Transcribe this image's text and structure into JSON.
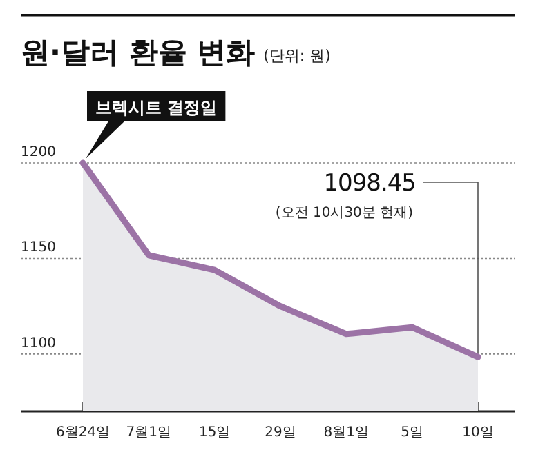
{
  "chart_data": {
    "type": "area",
    "title": "원·달러 환율 변화",
    "subtitle": "(단위: 원)",
    "categories": [
      "6월24일",
      "7월1일",
      "15일",
      "29일",
      "8월1일",
      "5일",
      "10일"
    ],
    "series": [
      {
        "color": "#9c73a6",
        "values": [
          1200,
          1151.7,
          1144,
          1125,
          1110.5,
          1114,
          1098.45
        ],
        "value_labels": [
          null,
          null,
          null,
          null,
          null,
          null,
          "1098.45"
        ]
      }
    ],
    "ylim": [
      1070,
      1200
    ],
    "yticks": [
      1100,
      1150,
      1200
    ],
    "grid": "y",
    "annotations": [
      "브렉시트 결정일",
      "(오전 10시30분 현재)"
    ]
  }
}
